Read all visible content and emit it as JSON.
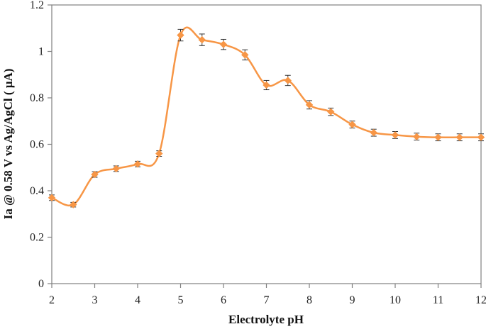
{
  "chart_data": {
    "type": "line",
    "title": "",
    "xlabel": "Electrolyte pH",
    "ylabel": "Ia @ 0.58 V vs Ag/AgCl ( μA)",
    "xlim": [
      2,
      12
    ],
    "ylim": [
      0,
      1.2
    ],
    "x_ticks": [
      "2",
      "3",
      "4",
      "5",
      "6",
      "7",
      "8",
      "9",
      "10",
      "11",
      "12"
    ],
    "y_ticks": [
      "0",
      "0.2",
      "0.4",
      "0.6",
      "0.8",
      "1",
      "1.2"
    ],
    "grid": false,
    "legend": null,
    "series": [
      {
        "name": "Ia",
        "color": "#f79646",
        "marker": "diamond",
        "smooth": true,
        "error_bars": true,
        "x": [
          2,
          2.5,
          3,
          3.5,
          4,
          4.5,
          5,
          5.5,
          6,
          6.5,
          7,
          7.5,
          8,
          8.5,
          9,
          9.5,
          10,
          10.5,
          11,
          11.5,
          12
        ],
        "values": [
          0.37,
          0.34,
          0.47,
          0.495,
          0.515,
          0.56,
          1.07,
          1.05,
          1.03,
          0.985,
          0.855,
          0.875,
          0.77,
          0.74,
          0.685,
          0.65,
          0.64,
          0.633,
          0.63,
          0.63,
          0.63
        ],
        "errors": [
          0.012,
          0.01,
          0.012,
          0.012,
          0.012,
          0.012,
          0.025,
          0.025,
          0.022,
          0.022,
          0.02,
          0.022,
          0.018,
          0.016,
          0.015,
          0.015,
          0.015,
          0.015,
          0.015,
          0.015,
          0.015
        ]
      }
    ]
  },
  "colors": {
    "series": "#f79646",
    "axis": "#808080",
    "error_bar": "#333333"
  }
}
